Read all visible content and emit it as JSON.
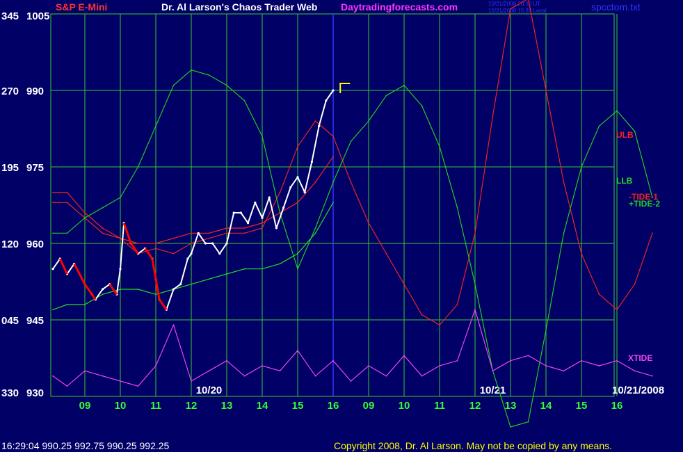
{
  "header": {
    "symbol": "S&P E-Mini",
    "title": "Dr. Al Larson's Chaos Trader Web",
    "site": "Daytradingforecasts.com",
    "time_ut": "10/21/2008 20:30 UT",
    "time_local": "10/21/2008 15:30 Local",
    "filename": "spcctom.txt"
  },
  "footer": {
    "quote": "16:29:04  990.25 992.75 990.25 992.25",
    "copyright": "Copyright 2008, Dr. Al Larson. May not be copied by any means."
  },
  "colors": {
    "background": "#000066",
    "grid": "#33cc33",
    "price": "#ffffff",
    "down_bars": "#ff0000",
    "ulb": "#ff2222",
    "llb": "#22dd22",
    "tide1": "#ee2222",
    "tide2": "#22cc22",
    "xtide": "#ee44ee",
    "now_line": "#3333ff",
    "fast_avg": "#ffff00",
    "slow_avg": "#0000ff"
  },
  "chart_data": {
    "type": "line",
    "title": "Dr. Al Larson's Chaos Trader Web",
    "symbol": "S&P E-Mini",
    "ylim": [
      930,
      1005
    ],
    "y_ticks": [
      {
        "left": "345",
        "right": "1005",
        "value": 1005
      },
      {
        "left": "270",
        "right": "990",
        "value": 990
      },
      {
        "left": "195",
        "right": "975",
        "value": 975
      },
      {
        "left": "120",
        "right": "960",
        "value": 960
      },
      {
        "left": "045",
        "right": "945",
        "value": 945
      },
      {
        "left": "330",
        "right": "930",
        "value": 930
      }
    ],
    "x_hour_ticks": [
      "09",
      "10",
      "11",
      "12",
      "13",
      "14",
      "15",
      "16",
      "09",
      "10",
      "11",
      "12",
      "13",
      "14",
      "15",
      "16"
    ],
    "date_labels": [
      {
        "label": "10/20",
        "hour_index": 3.5
      },
      {
        "label": "10/21",
        "hour_index": 11.5
      },
      {
        "label": "10/21/2008",
        "hour_index": 15.6
      }
    ],
    "now_hour_index": 7.0,
    "marker_hour_index": 7.2,
    "marker_price": 990,
    "legend": [
      {
        "label": "ULB",
        "color": "#ff2222"
      },
      {
        "label": "LLB",
        "color": "#22dd22"
      },
      {
        "label": "-TIDE-1",
        "color": "#ee2222"
      },
      {
        "label": "+TIDE-2",
        "color": "#22cc22"
      },
      {
        "label": "XTIDE",
        "color": "#ee44ee"
      }
    ],
    "series": [
      {
        "name": "ULB",
        "x": [
          -0.9,
          -0.5,
          0.0,
          0.5,
          1.0,
          1.5,
          2.0,
          2.5,
          3.0,
          3.5,
          4.0,
          4.5,
          5.0,
          5.5,
          6.0,
          6.5,
          7.0
        ],
        "values": [
          968,
          968,
          965,
          962,
          961,
          960,
          960,
          961,
          962,
          962,
          963,
          963,
          964,
          966,
          968,
          972,
          977
        ]
      },
      {
        "name": "LLB",
        "x": [
          -0.9,
          -0.5,
          0.0,
          0.5,
          1.0,
          1.5,
          2.0,
          2.5,
          3.0,
          3.5,
          4.0,
          4.5,
          5.0,
          5.5,
          6.0,
          6.5,
          7.0
        ],
        "values": [
          947,
          948,
          948,
          950,
          951,
          951,
          950,
          951,
          952,
          953,
          954,
          955,
          955,
          956,
          958,
          962,
          968
        ]
      },
      {
        "name": "-TIDE-1",
        "x": [
          -0.9,
          -0.5,
          0.0,
          0.5,
          1.0,
          1.5,
          2.0,
          2.5,
          3.0,
          3.5,
          4.0,
          4.5,
          5.0,
          5.5,
          6.0,
          6.5,
          7.0,
          7.5,
          8.0,
          8.5,
          9.0,
          9.5,
          10.0,
          10.5,
          11.0,
          11.5,
          12.0,
          12.5,
          13.0,
          13.5,
          14.0,
          14.5,
          15.0,
          15.5,
          16.0
        ],
        "values": [
          970,
          970,
          966,
          963,
          961,
          958,
          959,
          958,
          960,
          961,
          962,
          962,
          963,
          970,
          979,
          984,
          981,
          972,
          964,
          958,
          952,
          946,
          944,
          948,
          962,
          985,
          1006,
          1008,
          990,
          972,
          958,
          950,
          947,
          952,
          962
        ]
      },
      {
        "name": "+TIDE-2",
        "x": [
          -0.9,
          -0.5,
          0.0,
          0.5,
          1.0,
          1.5,
          2.0,
          2.5,
          3.0,
          3.5,
          4.0,
          4.5,
          5.0,
          5.5,
          6.0,
          6.5,
          7.0,
          7.5,
          8.0,
          8.5,
          9.0,
          9.5,
          10.0,
          10.5,
          11.0,
          11.5,
          12.0,
          12.5,
          13.0,
          13.5,
          14.0,
          14.5,
          15.0,
          15.5,
          16.0
        ],
        "values": [
          962,
          962,
          965,
          967,
          969,
          975,
          983,
          991,
          994,
          993,
          991,
          988,
          981,
          966,
          955,
          963,
          972,
          980,
          984,
          989,
          991,
          987,
          979,
          967,
          952,
          935,
          924,
          925,
          943,
          962,
          975,
          983,
          986,
          982,
          969
        ]
      },
      {
        "name": "Price",
        "x": [
          -0.9,
          -0.7,
          -0.5,
          -0.3,
          0.0,
          0.2,
          0.3,
          0.5,
          0.7,
          0.9,
          1.0,
          1.1,
          1.3,
          1.5,
          1.7,
          1.9,
          2.0,
          2.1,
          2.3,
          2.5,
          2.7,
          2.9,
          3.0,
          3.2,
          3.4,
          3.6,
          3.8,
          4.0,
          4.2,
          4.4,
          4.6,
          4.8,
          5.0,
          5.2,
          5.4,
          5.6,
          5.8,
          6.0,
          6.2,
          6.4,
          6.6,
          6.8,
          7.0
        ],
        "values": [
          955,
          957,
          954,
          956,
          952,
          950,
          949,
          951,
          952,
          950,
          955,
          964,
          960,
          958,
          959,
          957,
          953,
          949,
          947,
          951,
          952,
          957,
          958,
          962,
          960,
          960,
          958,
          960,
          966,
          966,
          964,
          968,
          965,
          969,
          963,
          967,
          971,
          973,
          970,
          976,
          983,
          988,
          990
        ]
      },
      {
        "name": "XTIDE",
        "x": [
          -0.9,
          -0.5,
          0.0,
          0.5,
          1.0,
          1.5,
          2.0,
          2.5,
          3.0,
          3.5,
          4.0,
          4.5,
          5.0,
          5.5,
          6.0,
          6.5,
          7.0,
          7.5,
          8.0,
          8.5,
          9.0,
          9.5,
          10.0,
          10.5,
          11.0,
          11.5,
          12.0,
          12.5,
          13.0,
          13.5,
          14.0,
          14.5,
          15.0,
          15.5,
          16.0
        ],
        "values": [
          934,
          932,
          935,
          934,
          933,
          932,
          936,
          944,
          933,
          935,
          937,
          934,
          936,
          935,
          939,
          934,
          937,
          933,
          936,
          934,
          938,
          934,
          936,
          937,
          947,
          935,
          937,
          938,
          936,
          935,
          937,
          936,
          937,
          935,
          934
        ]
      }
    ]
  }
}
